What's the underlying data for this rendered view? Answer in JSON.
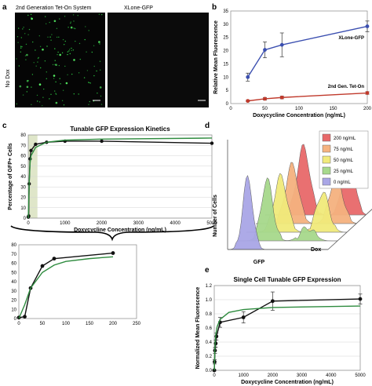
{
  "panel_a": {
    "label": "a",
    "left_title": "2nd Generation Tet-On System",
    "right_title": "XLone-GFP",
    "row_label": "No Dox"
  },
  "panel_b": {
    "label": "b"
  },
  "panel_c": {
    "label": "c"
  },
  "panel_d": {
    "label": "d",
    "ylabel": "Number of Cells",
    "xlabel": "GFP",
    "zlabel": "Dox",
    "legend": [
      {
        "label": "200 ng/mL",
        "color": "#e8696a"
      },
      {
        "label": "75 ng/mL",
        "color": "#f5b27f"
      },
      {
        "label": "50 ng/mL",
        "color": "#f1ea7b"
      },
      {
        "label": "25 ng/mL",
        "color": "#a7d98c"
      },
      {
        "label": "0 ng/mL",
        "color": "#a9a6e6"
      }
    ]
  },
  "panel_e": {
    "label": "e"
  },
  "chart_data": [
    {
      "type": "line",
      "title": "",
      "xlabel": "Doxycycline Concentration (ng/mL)",
      "ylabel": "Relative Mean Fluorescence",
      "xlim": [
        0,
        200
      ],
      "ylim": [
        0,
        35
      ],
      "xticks": [
        0,
        50,
        100,
        150,
        200
      ],
      "yticks": [
        0,
        5,
        10,
        15,
        20,
        25,
        30,
        35
      ],
      "series": [
        {
          "name": "XLone-GFP",
          "color": "#3b4fb0",
          "x": [
            25,
            50,
            75,
            200
          ],
          "y": [
            10,
            20.3,
            22.2,
            29.2
          ],
          "err": [
            1.5,
            3,
            4.5,
            2
          ]
        },
        {
          "name": "2nd Gen. Tet-On",
          "color": "#c0392b",
          "x": [
            25,
            50,
            75,
            200
          ],
          "y": [
            1,
            1.8,
            2.3,
            4
          ],
          "err": [
            0.3,
            0.5,
            0.5,
            0.5
          ]
        }
      ]
    },
    {
      "type": "line",
      "title": "Tunable GFP Expression Kinetics",
      "xlabel": "Doxycycline Concentration (ng/mL)",
      "ylabel": "Percentage of GFP+ Cells",
      "xlim": [
        0,
        5000
      ],
      "ylim": [
        0,
        80
      ],
      "xticks": [
        0,
        1000,
        2000,
        3000,
        4000,
        5000
      ],
      "yticks": [
        0,
        10,
        20,
        30,
        40,
        50,
        60,
        70,
        80
      ],
      "series": [
        {
          "name": "",
          "color": "#111111",
          "x": [
            0,
            12.5,
            25,
            50,
            75,
            200,
            500,
            1000,
            2000,
            5000
          ],
          "y": [
            1,
            2,
            33,
            57,
            65,
            71,
            73,
            74,
            74,
            72
          ]
        },
        {
          "name": "",
          "color": "#2e8b3e",
          "x": [
            0,
            12.5,
            25,
            50,
            75,
            200,
            500,
            1000,
            2000,
            5000
          ],
          "y": [
            0,
            15,
            33,
            53,
            60,
            68,
            73,
            75,
            76,
            77
          ]
        }
      ]
    },
    {
      "type": "line",
      "title": "",
      "xlabel": "",
      "ylabel": "",
      "xlim": [
        0,
        250
      ],
      "ylim": [
        0,
        80
      ],
      "xticks": [
        0,
        50,
        100,
        150,
        200,
        250
      ],
      "yticks": [
        0,
        10,
        20,
        30,
        40,
        50,
        60,
        70,
        80
      ],
      "series": [
        {
          "name": "",
          "color": "#111111",
          "x": [
            0,
            12.5,
            25,
            50,
            75,
            200
          ],
          "y": [
            1,
            2,
            33,
            57,
            65,
            71
          ]
        },
        {
          "name": "",
          "color": "#2e8b3e",
          "x": [
            0,
            12.5,
            25,
            50,
            75,
            100,
            150,
            200
          ],
          "y": [
            0,
            15,
            33,
            50,
            58,
            62,
            65,
            67
          ]
        }
      ]
    },
    {
      "type": "line",
      "title": "Single Cell Tunable GFP Expression",
      "xlabel": "Doxycycline Concentration (ng/mL)",
      "ylabel": "Normalized Mean Fluorescence",
      "xlim": [
        0,
        5000
      ],
      "ylim": [
        0,
        1.2
      ],
      "xticks": [
        0,
        1000,
        2000,
        3000,
        4000,
        5000
      ],
      "yticks": [
        0,
        0.2,
        0.4,
        0.6,
        0.8,
        1.0,
        1.2
      ],
      "series": [
        {
          "name": "",
          "color": "#111111",
          "x": [
            0,
            12.5,
            25,
            50,
            75,
            200,
            1000,
            2000,
            5000
          ],
          "y": [
            0,
            0.12,
            0.28,
            0.38,
            0.48,
            0.68,
            0.75,
            0.98,
            1.01
          ],
          "err": [
            0.01,
            0.03,
            0.04,
            0.05,
            0.05,
            0.07,
            0.08,
            0.13,
            0.07
          ]
        },
        {
          "name": "",
          "color": "#2e8b3e",
          "x": [
            0,
            25,
            50,
            100,
            200,
            500,
            1000,
            2000,
            5000
          ],
          "y": [
            0,
            0.35,
            0.5,
            0.62,
            0.72,
            0.82,
            0.86,
            0.89,
            0.91
          ]
        }
      ]
    }
  ]
}
